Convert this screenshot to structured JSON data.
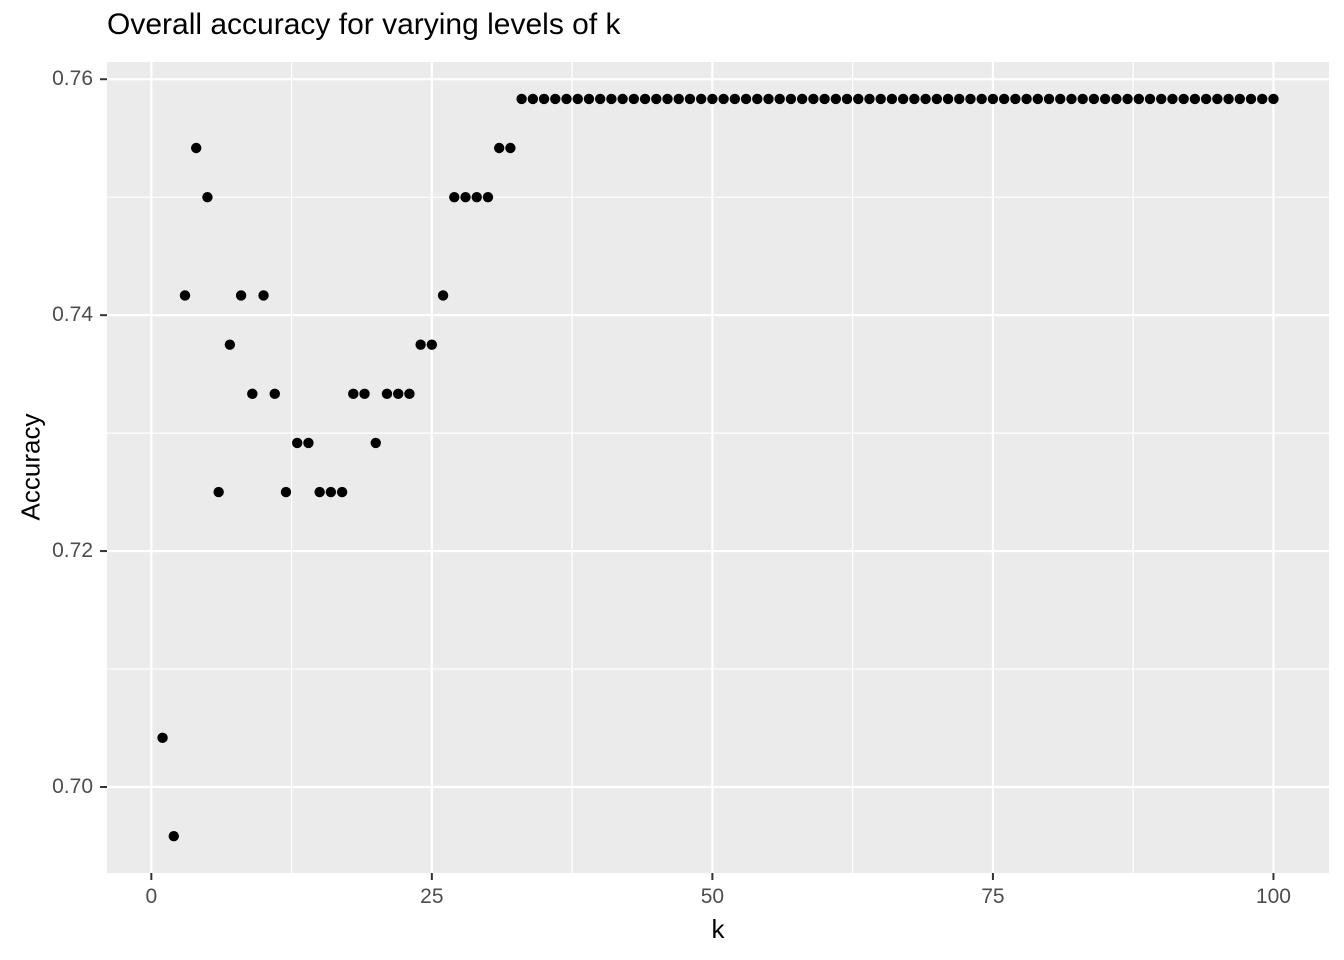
{
  "chart_data": {
    "type": "scatter",
    "title": "Overall accuracy for varying levels of k",
    "xlabel": "k",
    "ylabel": "Accuracy",
    "x_ticks": [
      0,
      25,
      50,
      75,
      100
    ],
    "x_tick_labels": [
      "0",
      "25",
      "50",
      "75",
      "100"
    ],
    "x_minor_ticks": [
      12.5,
      37.5,
      62.5,
      87.5
    ],
    "y_ticks": [
      0.7,
      0.72,
      0.74,
      0.76
    ],
    "y_tick_labels": [
      "0.70",
      "0.72",
      "0.74",
      "0.76"
    ],
    "y_minor_ticks": [
      0.71,
      0.73,
      0.75
    ],
    "xlim": [
      -3.95,
      104.95
    ],
    "ylim": [
      0.69271,
      0.76146
    ],
    "grid": true,
    "legend": "none",
    "series": [
      {
        "name": "accuracy",
        "x": [
          1,
          2,
          3,
          4,
          5,
          6,
          7,
          8,
          9,
          10,
          11,
          12,
          13,
          14,
          15,
          16,
          17,
          18,
          19,
          20,
          21,
          22,
          23,
          24,
          25,
          26,
          27,
          28,
          29,
          30,
          31,
          32,
          33,
          34,
          35,
          36,
          37,
          38,
          39,
          40,
          41,
          42,
          43,
          44,
          45,
          46,
          47,
          48,
          49,
          50,
          51,
          52,
          53,
          54,
          55,
          56,
          57,
          58,
          59,
          60,
          61,
          62,
          63,
          64,
          65,
          66,
          67,
          68,
          69,
          70,
          71,
          72,
          73,
          74,
          75,
          76,
          77,
          78,
          79,
          80,
          81,
          82,
          83,
          84,
          85,
          86,
          87,
          88,
          89,
          90,
          91,
          92,
          93,
          94,
          95,
          96,
          97,
          98,
          99,
          100
        ],
        "y": [
          0.70417,
          0.69583,
          0.74167,
          0.75417,
          0.75,
          0.725,
          0.7375,
          0.74167,
          0.73333,
          0.74167,
          0.73333,
          0.725,
          0.72917,
          0.72917,
          0.725,
          0.725,
          0.725,
          0.73333,
          0.73333,
          0.72917,
          0.73333,
          0.73333,
          0.73333,
          0.7375,
          0.7375,
          0.74167,
          0.75,
          0.75,
          0.75,
          0.75,
          0.75417,
          0.75417,
          0.75833,
          0.75833,
          0.75833,
          0.75833,
          0.75833,
          0.75833,
          0.75833,
          0.75833,
          0.75833,
          0.75833,
          0.75833,
          0.75833,
          0.75833,
          0.75833,
          0.75833,
          0.75833,
          0.75833,
          0.75833,
          0.75833,
          0.75833,
          0.75833,
          0.75833,
          0.75833,
          0.75833,
          0.75833,
          0.75833,
          0.75833,
          0.75833,
          0.75833,
          0.75833,
          0.75833,
          0.75833,
          0.75833,
          0.75833,
          0.75833,
          0.75833,
          0.75833,
          0.75833,
          0.75833,
          0.75833,
          0.75833,
          0.75833,
          0.75833,
          0.75833,
          0.75833,
          0.75833,
          0.75833,
          0.75833,
          0.75833,
          0.75833,
          0.75833,
          0.75833,
          0.75833,
          0.75833,
          0.75833,
          0.75833,
          0.75833,
          0.75833,
          0.75833,
          0.75833,
          0.75833,
          0.75833,
          0.75833,
          0.75833,
          0.75833,
          0.75833,
          0.75833,
          0.75833
        ]
      }
    ],
    "style": {
      "plot_bg": "#FFFFFF",
      "panel_bg": "#EBEBEB",
      "grid_color": "#FFFFFF",
      "point_color": "#000000",
      "axis_text_color": "#4D4D4D",
      "tick_mark_color": "#333333",
      "title_color": "#000000"
    }
  }
}
